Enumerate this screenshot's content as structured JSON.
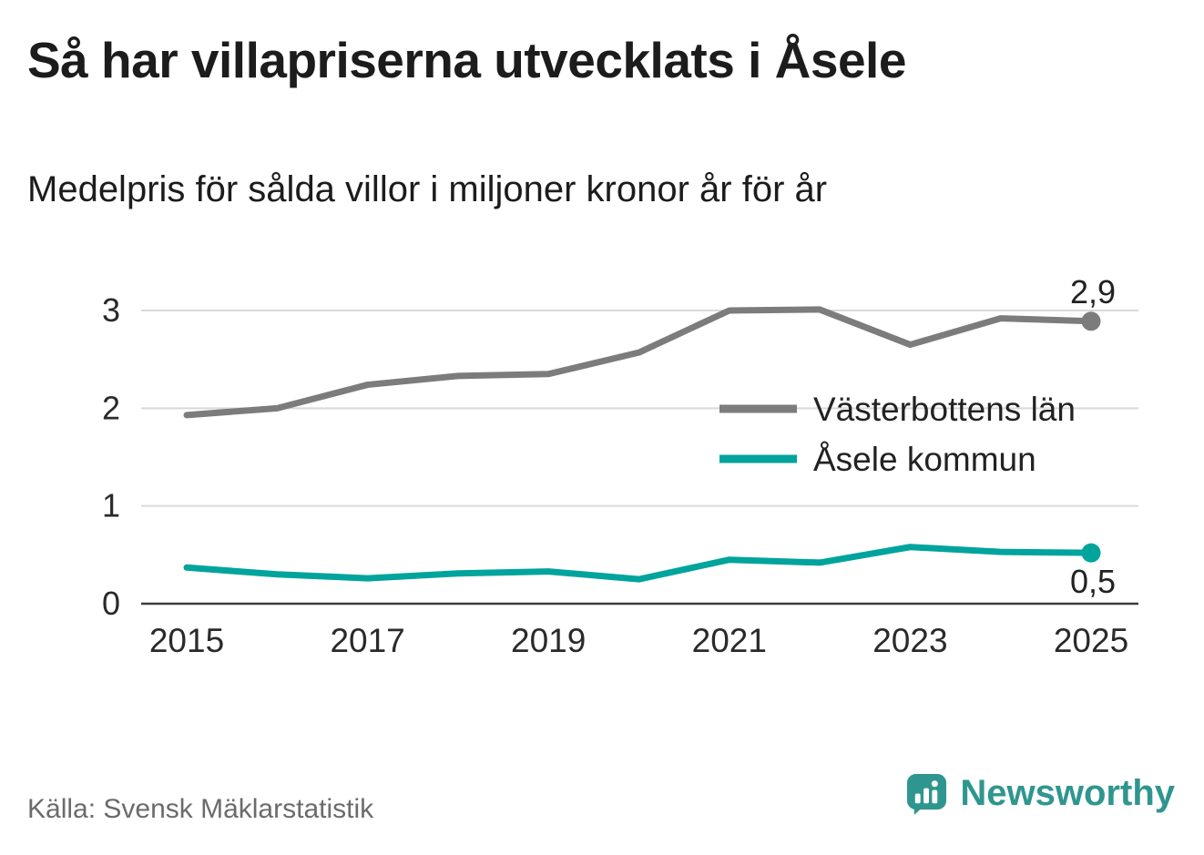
{
  "title": "Så har villapriserna utvecklats i Åsele",
  "subtitle": "Medelpris för sålda villor i miljoner kronor år för år",
  "source": "Källa: Svensk Mäklarstatistik",
  "logo": {
    "text": "Newsworthy"
  },
  "colors": {
    "gray_series": "#7c7c7c",
    "teal_series": "#00a49d",
    "grid": "#d9d9d9",
    "axis": "#3c3c3c",
    "tick_text": "#2a2a2a",
    "label_text": "#222222",
    "logo_teal": "#2f968f"
  },
  "chart_data": {
    "type": "line",
    "x": [
      2015,
      2016,
      2017,
      2018,
      2019,
      2020,
      2021,
      2022,
      2023,
      2024,
      2025
    ],
    "series": [
      {
        "name": "Västerbottens län",
        "color": "#7c7c7c",
        "values": [
          1.93,
          2.0,
          2.24,
          2.33,
          2.35,
          2.57,
          3.0,
          3.01,
          2.65,
          2.92,
          2.89
        ],
        "end_label": "2,9"
      },
      {
        "name": "Åsele kommun",
        "color": "#00a49d",
        "values": [
          0.37,
          0.3,
          0.26,
          0.31,
          0.33,
          0.25,
          0.45,
          0.42,
          0.58,
          0.53,
          0.52
        ],
        "end_label": "0,5"
      }
    ],
    "x_ticks": [
      2015,
      2017,
      2019,
      2021,
      2023,
      2025
    ],
    "y_ticks": [
      0,
      1,
      2,
      3
    ],
    "ylim": [
      0,
      3.2
    ],
    "grid": "horizontal",
    "legend_position": "right-middle",
    "ylabel": "",
    "xlabel": ""
  }
}
